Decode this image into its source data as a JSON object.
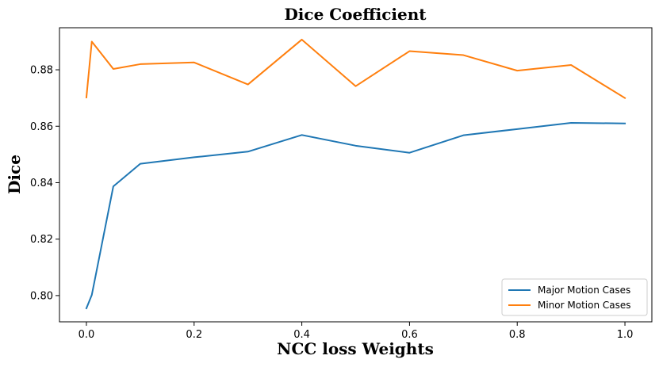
{
  "chart_data": {
    "type": "line",
    "title": "Dice Coefficient",
    "xlabel": "NCC loss Weights",
    "ylabel": "Dice",
    "x": [
      0.0,
      0.01,
      0.05,
      0.1,
      0.2,
      0.3,
      0.4,
      0.5,
      0.6,
      0.7,
      0.8,
      0.9,
      1.0
    ],
    "series": [
      {
        "name": "Major Motion Cases",
        "color": "#1f77b4",
        "values": [
          0.7955,
          0.8002,
          0.8387,
          0.8467,
          0.849,
          0.851,
          0.8569,
          0.8531,
          0.8506,
          0.8568,
          0.859,
          0.8612,
          0.861
        ]
      },
      {
        "name": "Minor Motion Cases",
        "color": "#ff7f0e",
        "values": [
          0.8702,
          0.89,
          0.8803,
          0.882,
          0.8826,
          0.8748,
          0.8907,
          0.8742,
          0.8866,
          0.8852,
          0.8797,
          0.8817,
          0.87
        ]
      }
    ],
    "xlim": [
      -0.05,
      1.05
    ],
    "ylim": [
      0.7907,
      0.8949
    ],
    "xticks": [
      0.0,
      0.2,
      0.4,
      0.6,
      0.8,
      1.0
    ],
    "xtick_labels": [
      "0.0",
      "0.2",
      "0.4",
      "0.6",
      "0.8",
      "1.0"
    ],
    "yticks": [
      0.8,
      0.82,
      0.84,
      0.86,
      0.88
    ],
    "ytick_labels": [
      "0.80",
      "0.82",
      "0.84",
      "0.86",
      "0.88"
    ],
    "grid": false,
    "legend_position": "lower-right"
  }
}
